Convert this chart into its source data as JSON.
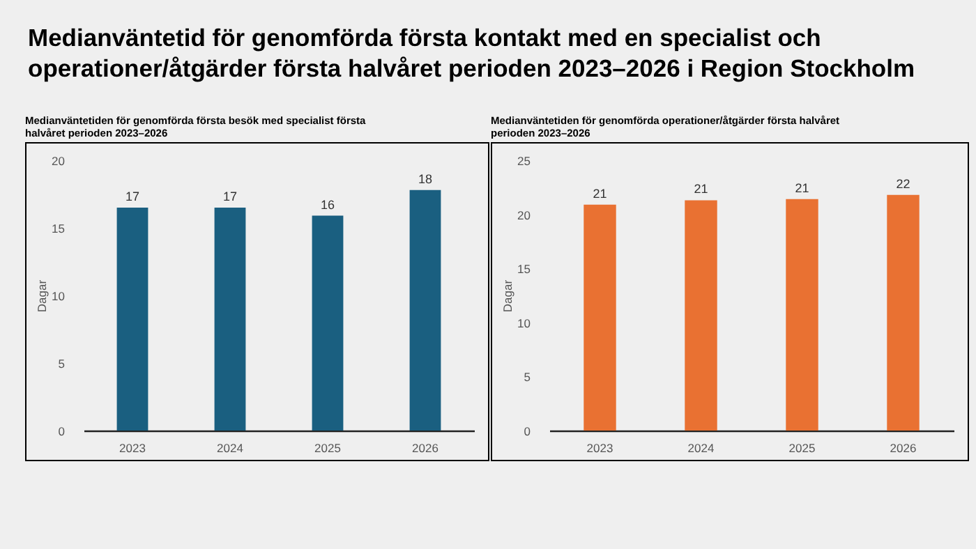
{
  "chart_data": [
    {
      "type": "bar",
      "title": "Medianväntetid för genomförda första kontakt med en specialist och operationer/åtgärder första halvåret perioden 2023–2026 i Region Stockholm",
      "subtitle": "Medianväntetiden för genomförda första besök med specialist första halvåret perioden 2023–2026",
      "ylabel": "Dagar",
      "categories": [
        "2023",
        "2024",
        "2025",
        "2026"
      ],
      "series": [
        {
          "color": "#1a5f80",
          "values": [
            16.5,
            16.5,
            15.9,
            17.8
          ],
          "value_labels": [
            "17",
            "17",
            "16",
            "18"
          ]
        }
      ],
      "ylim": [
        0,
        20
      ],
      "yticks": [
        0,
        5,
        10,
        15,
        20
      ],
      "grid": false
    },
    {
      "type": "bar",
      "title": "Medianväntetiden för genomförda operationer/åtgärder första halvåret perioden 2023–2026",
      "ylabel": "Dagar",
      "categories": [
        "2023",
        "2024",
        "2025",
        "2026"
      ],
      "series": [
        {
          "color": "#e97132",
          "values": [
            20.9,
            21.3,
            21.4,
            21.8
          ],
          "value_labels": [
            "21",
            "21",
            "21",
            "22"
          ]
        }
      ],
      "ylim": [
        0,
        25
      ],
      "yticks": [
        0,
        5,
        10,
        15,
        20,
        25
      ],
      "grid": false
    }
  ]
}
